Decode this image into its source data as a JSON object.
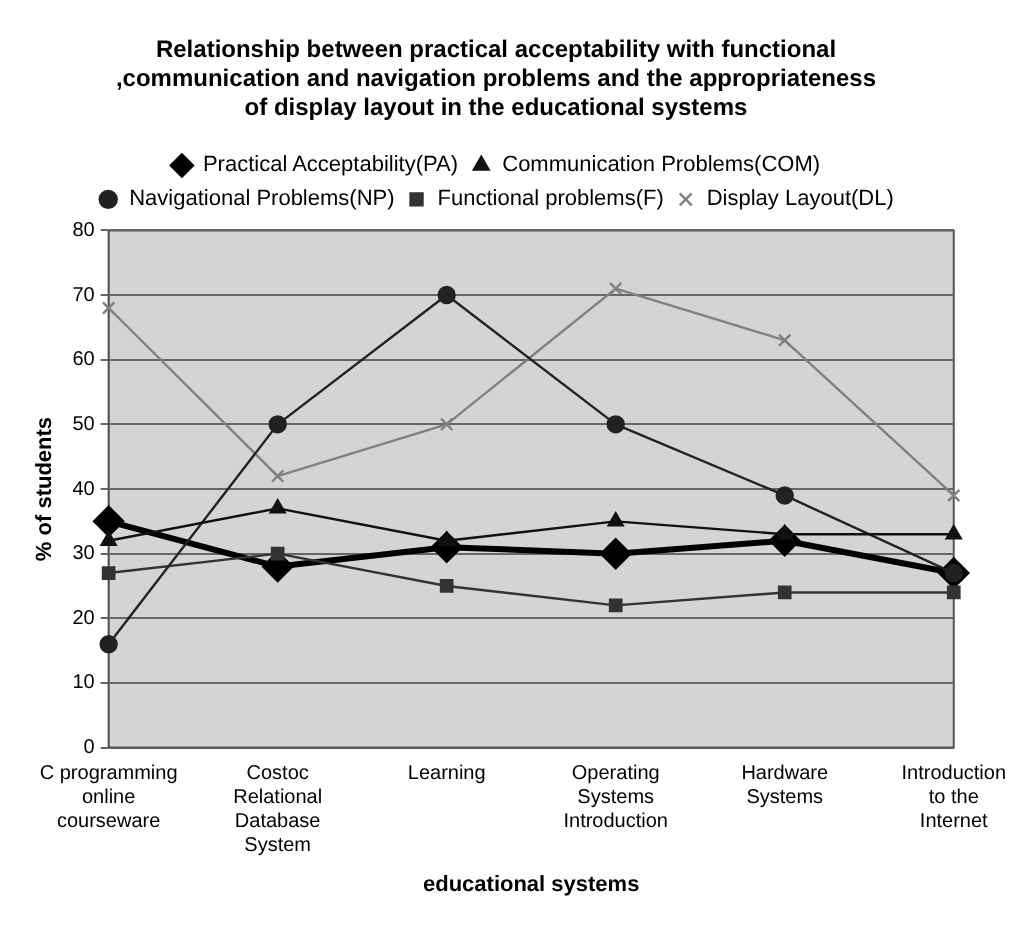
{
  "chart_data": {
    "type": "line",
    "title": "Relationship between practical acceptability with functional ,communication and navigation problems and the appropriateness of display layout in the educational systems",
    "xlabel": "educational systems",
    "ylabel": "% of students",
    "categories": [
      "C programming online courseware",
      "Costoc Relational Database System",
      "Learning",
      "Operating Systems Introduction",
      "Hardware Systems",
      "Introduction to the Internet"
    ],
    "series": [
      {
        "name": "Practical Acceptability(PA)",
        "color": "#000000",
        "marker": "diamond",
        "values": [
          35,
          28,
          31,
          30,
          32,
          27
        ]
      },
      {
        "name": "Communication Problems(COM)",
        "color": "#111111",
        "marker": "triangle",
        "values": [
          32,
          37,
          32,
          35,
          33,
          33
        ]
      },
      {
        "name": "Navigational Problems(NP)",
        "color": "#222222",
        "marker": "circle",
        "values": [
          16,
          50,
          70,
          50,
          39,
          27
        ]
      },
      {
        "name": "Functional problems(F)",
        "color": "#333333",
        "marker": "square",
        "values": [
          27,
          30,
          25,
          22,
          24,
          24
        ]
      },
      {
        "name": "Display Layout(DL)",
        "color": "#808080",
        "marker": "cross",
        "values": [
          68,
          42,
          50,
          71,
          63,
          39
        ]
      }
    ],
    "ylim": [
      0,
      80
    ],
    "yticks": [
      0,
      10,
      20,
      30,
      40,
      50,
      60,
      70,
      80
    ],
    "grid": "y",
    "legend": "top",
    "line_style": "solid"
  }
}
